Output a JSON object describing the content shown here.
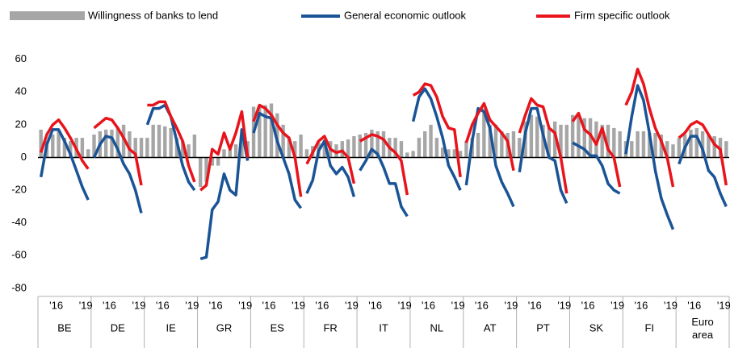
{
  "chart_data": {
    "type": "bar-line",
    "groups": [
      "BE",
      "DE",
      "IE",
      "GR",
      "ES",
      "FR",
      "IT",
      "NL",
      "AT",
      "PT",
      "SK",
      "FI",
      "Euro area"
    ],
    "categories": [
      null,
      null,
      null,
      "'16",
      null,
      null,
      null,
      null,
      "'19"
    ],
    "ylim": [
      -85,
      65
    ],
    "yticks": [
      -80,
      -60,
      -40,
      -20,
      0,
      20,
      40,
      60
    ],
    "series": [
      {
        "name": "Willingness of banks to lend",
        "color": "#a6a6a6",
        "type": "bar",
        "values": [
          [
            17,
            10,
            14,
            16,
            12,
            10,
            12,
            12,
            5
          ],
          [
            14,
            16,
            17,
            17,
            18,
            20,
            16,
            12,
            12
          ],
          [
            12,
            20,
            20,
            19,
            18,
            12,
            10,
            8,
            14
          ],
          [
            -18,
            -15,
            -5,
            -5,
            5,
            5,
            8,
            12,
            10
          ],
          [
            31,
            32,
            32,
            33,
            27,
            20,
            12,
            10,
            14
          ],
          [
            5,
            7,
            9,
            11,
            10,
            8,
            10,
            11,
            13
          ],
          [
            14,
            15,
            17,
            16,
            16,
            12,
            12,
            10,
            3
          ],
          [
            4,
            12,
            16,
            20,
            12,
            6,
            5,
            5,
            4
          ],
          [
            10,
            12,
            15,
            30,
            20,
            20,
            16,
            15,
            16
          ],
          [
            12,
            22,
            26,
            25,
            20,
            18,
            22,
            20,
            20
          ],
          [
            26,
            26,
            24,
            24,
            22,
            20,
            20,
            18,
            16
          ],
          [
            10,
            10,
            16,
            16,
            15,
            15,
            14,
            10,
            8
          ],
          [
            12,
            14,
            17,
            18,
            16,
            14,
            13,
            12,
            10
          ]
        ]
      },
      {
        "name": "General economic outlook",
        "color": "#1a5496",
        "type": "line",
        "values": [
          [
            -12,
            8,
            17,
            17,
            10,
            2,
            -8,
            -18,
            -26
          ],
          [
            0,
            8,
            13,
            12,
            5,
            -4,
            -10,
            -20,
            -34
          ],
          [
            20,
            30,
            30,
            32,
            25,
            10,
            -5,
            -15,
            -20
          ],
          [
            -62,
            -61,
            -32,
            -27,
            -10,
            -20,
            -23,
            17,
            -2
          ],
          [
            15,
            27,
            25,
            24,
            10,
            0,
            -10,
            -26,
            -31
          ],
          [
            -22,
            -14,
            4,
            10,
            -5,
            -10,
            -6,
            -12,
            -24
          ],
          [
            -8,
            -2,
            5,
            2,
            -6,
            -16,
            -16,
            -30,
            -36
          ],
          [
            22,
            37,
            42,
            36,
            25,
            12,
            -5,
            -12,
            -20
          ],
          [
            -17,
            10,
            30,
            28,
            18,
            -5,
            -15,
            -22,
            -30
          ],
          [
            -9,
            15,
            30,
            30,
            14,
            0,
            -2,
            -20,
            -28
          ],
          [
            9,
            7,
            5,
            1,
            1,
            -5,
            -16,
            -20,
            -22
          ],
          [
            2,
            25,
            44,
            35,
            15,
            -8,
            -25,
            -35,
            -44
          ],
          [
            -4,
            6,
            13,
            13,
            5,
            -8,
            -12,
            -22,
            -30
          ]
        ]
      },
      {
        "name": "Firm specific outlook",
        "color": "#e8141b",
        "type": "line",
        "values": [
          [
            3,
            14,
            20,
            23,
            18,
            12,
            5,
            -2,
            -7
          ],
          [
            18,
            21,
            24,
            23,
            18,
            12,
            5,
            2,
            -17
          ],
          [
            32,
            32,
            34,
            34,
            25,
            18,
            10,
            -5,
            -15
          ],
          [
            -20,
            -17,
            5,
            2,
            15,
            5,
            15,
            28,
            0
          ],
          [
            22,
            32,
            30,
            26,
            20,
            15,
            12,
            0,
            -24
          ],
          [
            -4,
            3,
            10,
            13,
            5,
            3,
            4,
            0,
            -16
          ],
          [
            10,
            12,
            14,
            13,
            11,
            6,
            3,
            -2,
            -23
          ],
          [
            38,
            40,
            45,
            44,
            37,
            25,
            18,
            17,
            -12
          ],
          [
            9,
            20,
            27,
            33,
            23,
            19,
            15,
            10,
            -8
          ],
          [
            15,
            26,
            36,
            32,
            31,
            18,
            15,
            0,
            -22
          ],
          [
            22,
            27,
            17,
            14,
            8,
            18,
            5,
            0,
            -18
          ],
          [
            32,
            40,
            54,
            45,
            30,
            18,
            10,
            0,
            -18
          ],
          [
            12,
            15,
            20,
            22,
            20,
            14,
            8,
            5,
            -17
          ]
        ]
      }
    ]
  }
}
